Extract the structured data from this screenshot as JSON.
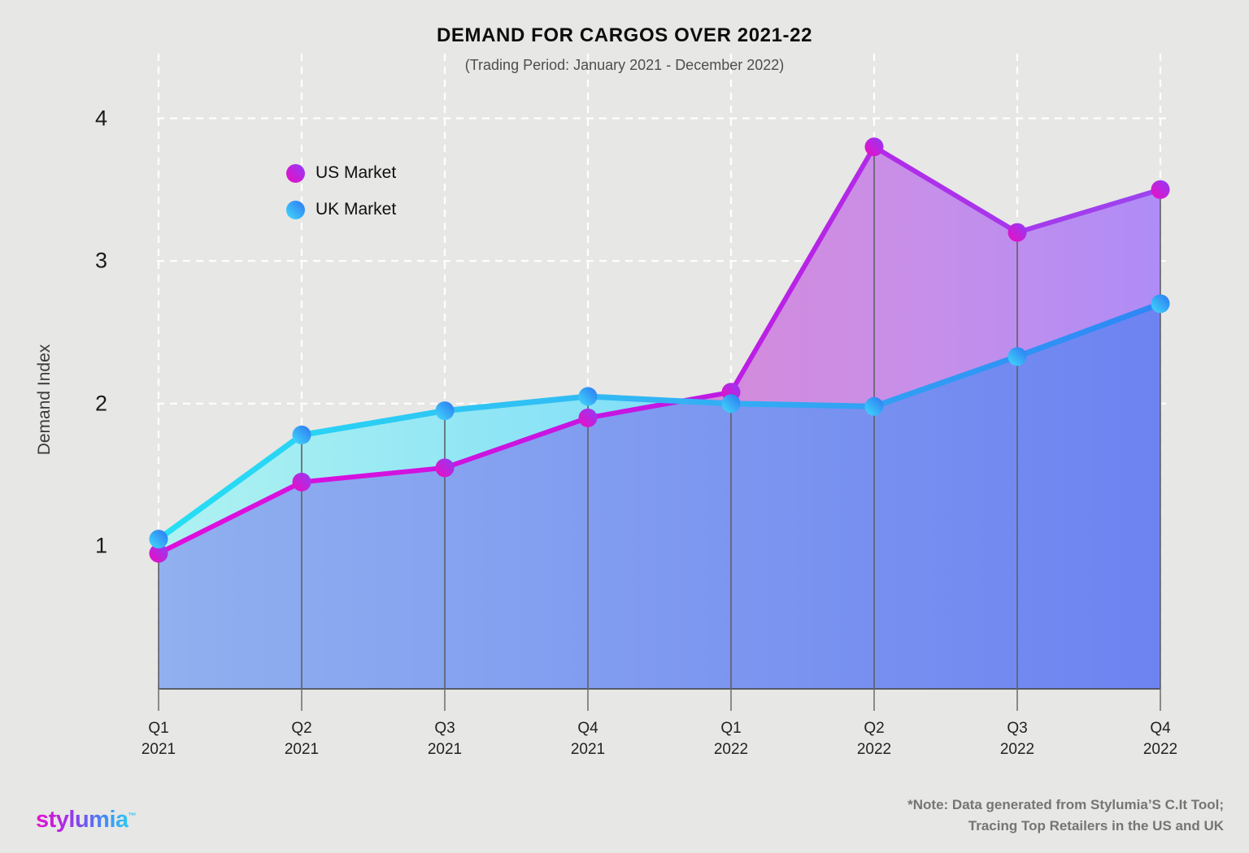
{
  "title": "DEMAND FOR CARGOS OVER 2021-22",
  "subtitle": "(Trading Period: January 2021 - December 2022)",
  "legend": [
    {
      "label": "US Market"
    },
    {
      "label": "UK Market"
    }
  ],
  "footer": {
    "logo_text": "stylumia",
    "logo_tm": "™",
    "note_line1": "*Note: Data generated from Stylumia’S C.It Tool;",
    "note_line2": "Tracing Top Retailers in the US and UK"
  },
  "chart_data": {
    "type": "area",
    "title": "DEMAND FOR CARGOS OVER 2021-22",
    "subtitle": "(Trading Period: January 2021 - December 2022)",
    "xlabel": "",
    "ylabel": "Demand Index",
    "categories": [
      "Q1 2021",
      "Q2 2021",
      "Q3 2021",
      "Q4 2021",
      "Q1 2022",
      "Q2 2022",
      "Q3 2022",
      "Q4 2022"
    ],
    "series": [
      {
        "name": "US Market",
        "values": [
          0.95,
          1.45,
          1.55,
          1.9,
          2.08,
          3.8,
          3.2,
          3.5
        ]
      },
      {
        "name": "UK Market",
        "values": [
          1.05,
          1.78,
          1.95,
          2.05,
          2.0,
          1.98,
          2.33,
          2.7
        ]
      }
    ],
    "yticks": [
      1,
      2,
      3,
      4
    ],
    "grid_y": [
      2,
      3,
      4
    ],
    "ylim": [
      0,
      4.4
    ],
    "grid": "dashed-white",
    "legend_position": "upper-left-inside",
    "style": {
      "background": "#e7e7e5",
      "grid_color": "#ffffff",
      "area_blue": [
        "#90b0ef",
        "#6d83f1"
      ],
      "band_cyan": [
        "#aff2f1",
        "#7edef7"
      ],
      "band_purple": [
        "#d68ad8",
        "#c78fe9",
        "#af8cf6"
      ],
      "us_line": [
        "#e00edc",
        "#c316e3",
        "#9b45ef"
      ],
      "uk_line": [
        "#25e0f4",
        "#33b4f4",
        "#2e86f5"
      ],
      "us_dot": [
        "#ef0cc0",
        "#8f3bf8"
      ],
      "uk_dot": [
        "#41dcfa",
        "#2d75f3"
      ],
      "axis_color": "#3f3f3f",
      "dropline_color": "#5f5f66",
      "tick_color": "#747474"
    }
  }
}
